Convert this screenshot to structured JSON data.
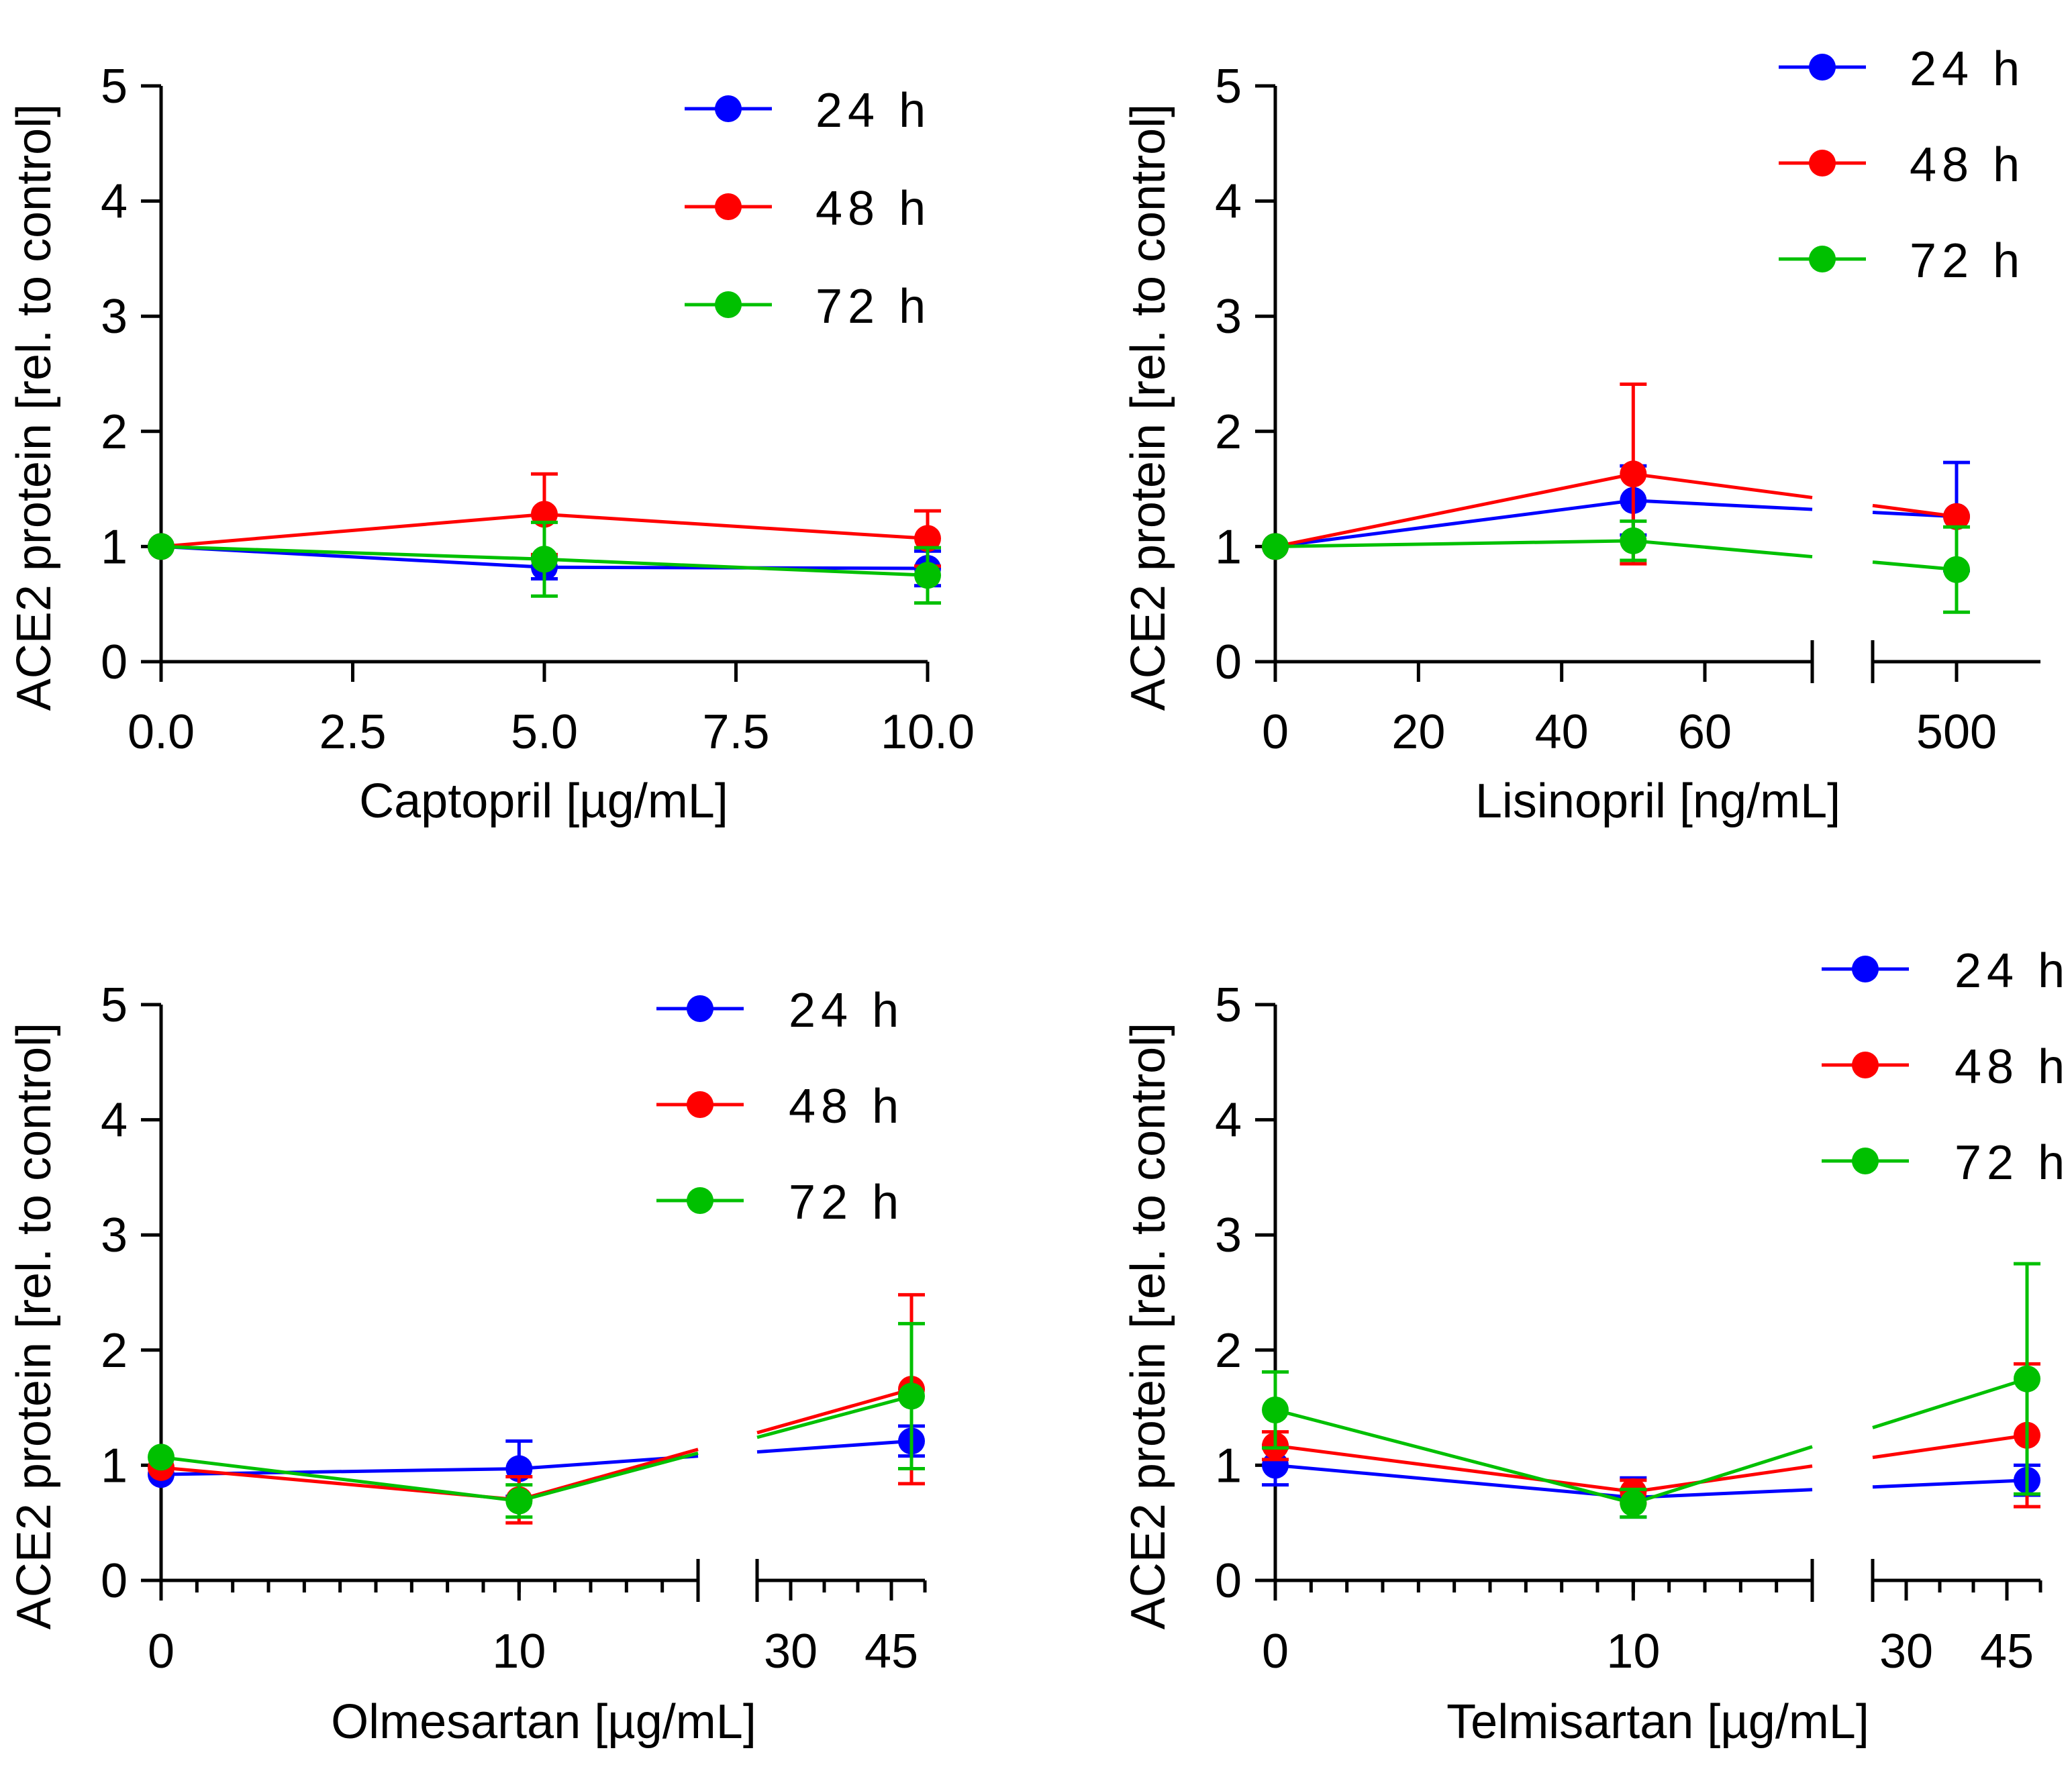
{
  "colors": {
    "24 h": "#0000ff",
    "48 h": "#ff0000",
    "72 h": "#00c000",
    "axis": "#000000"
  },
  "chart_data": [
    {
      "id": "captopril",
      "type": "line",
      "title": "",
      "xlabel": "Captopril [µg/mL]",
      "ylabel": "ACE2 protein [rel. to control]",
      "ylim": [
        0,
        5
      ],
      "yticks": [
        "0",
        "1",
        "2",
        "3",
        "4",
        "5"
      ],
      "xlim": [
        0,
        10
      ],
      "xticks": [
        {
          "v": 0,
          "label": "0.0"
        },
        {
          "v": 2.5,
          "label": "2.5"
        },
        {
          "v": 5,
          "label": "5.0"
        },
        {
          "v": 7.5,
          "label": "7.5"
        },
        {
          "v": 10,
          "label": "10.0"
        }
      ],
      "legend": "top-right",
      "series": [
        {
          "name": "24 h",
          "x": [
            0,
            5,
            10
          ],
          "y": [
            1.0,
            0.82,
            0.81
          ],
          "err": [
            0,
            0.1,
            0.15
          ]
        },
        {
          "name": "48 h",
          "x": [
            0,
            5,
            10
          ],
          "y": [
            1.0,
            1.28,
            1.07
          ],
          "err": [
            0,
            0.35,
            0.24
          ]
        },
        {
          "name": "72 h",
          "x": [
            0,
            5,
            10
          ],
          "y": [
            1.0,
            0.89,
            0.75
          ],
          "err": [
            0,
            0.32,
            0.24
          ]
        }
      ]
    },
    {
      "id": "lisinopril",
      "type": "line",
      "title": "",
      "xlabel": "Lisinopril [ng/mL]",
      "ylabel": "ACE2 protein [rel. to control]",
      "ylim": [
        0,
        5
      ],
      "yticks": [
        "0",
        "1",
        "2",
        "3",
        "4",
        "5"
      ],
      "broken_axis": true,
      "segments": [
        {
          "min": 0,
          "max": 75,
          "ticks": [
            {
              "v": 0,
              "label": "0"
            },
            {
              "v": 20,
              "label": "20"
            },
            {
              "v": 40,
              "label": "40"
            },
            {
              "v": 60,
              "label": "60"
            }
          ]
        },
        {
          "min": 480,
          "max": 520,
          "ticks": [
            {
              "v": 500,
              "label": "500"
            }
          ]
        }
      ],
      "legend": "top-right",
      "series": [
        {
          "name": "24 h",
          "x": [
            0,
            50,
            500
          ],
          "y": [
            1.0,
            1.4,
            1.26
          ],
          "err": [
            0,
            0.3,
            0.47
          ]
        },
        {
          "name": "48 h",
          "x": [
            0,
            50,
            500
          ],
          "y": [
            1.0,
            1.63,
            1.26
          ],
          "err": [
            0,
            0.78,
            0.0
          ]
        },
        {
          "name": "72 h",
          "x": [
            0,
            50,
            500
          ],
          "y": [
            1.0,
            1.05,
            0.8
          ],
          "err": [
            0,
            0.17,
            0.37
          ]
        }
      ]
    },
    {
      "id": "olmesartan",
      "type": "line",
      "title": "",
      "xlabel": "Olmesartan [µg/mL]",
      "ylabel": "ACE2 protein [rel. to control]",
      "ylim": [
        0,
        5
      ],
      "yticks": [
        "0",
        "1",
        "2",
        "3",
        "4",
        "5"
      ],
      "broken_axis": true,
      "segments": [
        {
          "min": 0,
          "max": 15,
          "minor_step": 1,
          "ticks": [
            {
              "v": 0,
              "label": "0"
            },
            {
              "v": 10,
              "label": "10"
            }
          ]
        },
        {
          "min": 25,
          "max": 50,
          "minor_step": 5,
          "ticks": [
            {
              "v": 30,
              "label": "30"
            },
            {
              "v": 45,
              "label": "45"
            }
          ]
        }
      ],
      "legend": "top-right",
      "series": [
        {
          "name": "24 h",
          "x": [
            0,
            10,
            48
          ],
          "y": [
            0.92,
            0.97,
            1.21
          ],
          "err": [
            0,
            0.24,
            0.13
          ]
        },
        {
          "name": "48 h",
          "x": [
            0,
            10,
            48
          ],
          "y": [
            0.98,
            0.7,
            1.66
          ],
          "err": [
            0,
            0.2,
            0.82
          ]
        },
        {
          "name": "72 h",
          "x": [
            0,
            10,
            48
          ],
          "y": [
            1.07,
            0.69,
            1.6
          ],
          "err": [
            0,
            0.14,
            0.63
          ]
        }
      ]
    },
    {
      "id": "telmisartan",
      "type": "line",
      "title": "",
      "xlabel": "Telmisartan [µg/mL]",
      "ylabel": "ACE2 protein [rel. to control]",
      "ylim": [
        0,
        5
      ],
      "yticks": [
        "0",
        "1",
        "2",
        "3",
        "4",
        "5"
      ],
      "broken_axis": true,
      "segments": [
        {
          "min": 0,
          "max": 15,
          "minor_step": 1,
          "ticks": [
            {
              "v": 0,
              "label": "0"
            },
            {
              "v": 10,
              "label": "10"
            }
          ]
        },
        {
          "min": 25,
          "max": 50,
          "minor_step": 5,
          "ticks": [
            {
              "v": 30,
              "label": "30"
            },
            {
              "v": 45,
              "label": "45"
            }
          ]
        }
      ],
      "legend": "top-right",
      "series": [
        {
          "name": "24 h",
          "x": [
            0,
            10,
            48
          ],
          "y": [
            1.0,
            0.72,
            0.87
          ],
          "err": [
            0.17,
            0.17,
            0.13
          ]
        },
        {
          "name": "48 h",
          "x": [
            0,
            10,
            48
          ],
          "y": [
            1.17,
            0.77,
            1.26
          ],
          "err": [
            0.12,
            0.1,
            0.62
          ]
        },
        {
          "name": "72 h",
          "x": [
            0,
            10,
            48
          ],
          "y": [
            1.48,
            0.67,
            1.75
          ],
          "err": [
            0.33,
            0.12,
            1.0
          ]
        }
      ]
    }
  ]
}
